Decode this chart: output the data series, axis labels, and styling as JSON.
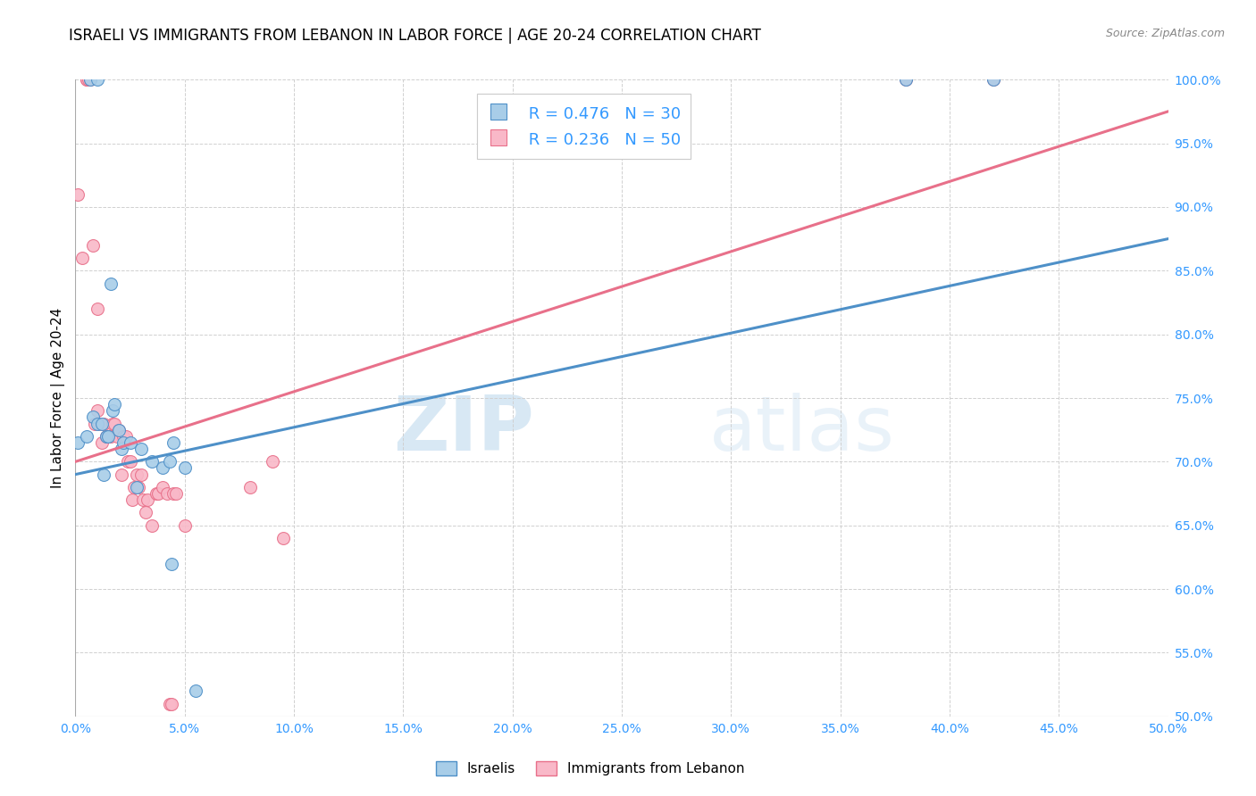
{
  "title": "ISRAELI VS IMMIGRANTS FROM LEBANON IN LABOR FORCE | AGE 20-24 CORRELATION CHART",
  "source": "Source: ZipAtlas.com",
  "ylabel": "In Labor Force | Age 20-24",
  "xlim": [
    0.0,
    0.5
  ],
  "ylim": [
    0.5,
    1.0
  ],
  "xticks": [
    0.0,
    0.05,
    0.1,
    0.15,
    0.2,
    0.25,
    0.3,
    0.35,
    0.4,
    0.45,
    0.5
  ],
  "yticks": [
    0.5,
    0.55,
    0.6,
    0.65,
    0.7,
    0.75,
    0.8,
    0.85,
    0.9,
    0.95,
    1.0
  ],
  "blue_R": 0.476,
  "blue_N": 30,
  "pink_R": 0.236,
  "pink_N": 50,
  "blue_color": "#a8cde8",
  "pink_color": "#f9b8c8",
  "blue_line_color": "#4e90c8",
  "pink_line_color": "#e8708a",
  "legend_label_blue": "Israelis",
  "legend_label_pink": "Immigrants from Lebanon",
  "watermark_zip": "ZIP",
  "watermark_atlas": "atlas",
  "blue_points_x": [
    0.001,
    0.005,
    0.007,
    0.008,
    0.01,
    0.01,
    0.012,
    0.013,
    0.014,
    0.015,
    0.016,
    0.017,
    0.018,
    0.02,
    0.021,
    0.022,
    0.025,
    0.028,
    0.03,
    0.035,
    0.04,
    0.043,
    0.044,
    0.045,
    0.05,
    0.055,
    0.38,
    0.42
  ],
  "blue_points_y": [
    0.715,
    0.72,
    1.0,
    0.735,
    0.73,
    1.0,
    0.73,
    0.69,
    0.72,
    0.72,
    0.84,
    0.74,
    0.745,
    0.725,
    0.71,
    0.715,
    0.715,
    0.68,
    0.71,
    0.7,
    0.695,
    0.7,
    0.62,
    0.715,
    0.695,
    0.52,
    1.0,
    1.0
  ],
  "pink_points_x": [
    0.001,
    0.003,
    0.005,
    0.005,
    0.006,
    0.007,
    0.008,
    0.009,
    0.01,
    0.01,
    0.011,
    0.012,
    0.013,
    0.014,
    0.015,
    0.016,
    0.017,
    0.018,
    0.019,
    0.02,
    0.021,
    0.022,
    0.023,
    0.024,
    0.025,
    0.026,
    0.027,
    0.028,
    0.029,
    0.03,
    0.031,
    0.032,
    0.033,
    0.035,
    0.037,
    0.038,
    0.04,
    0.042,
    0.043,
    0.044,
    0.045,
    0.046,
    0.05,
    0.08,
    0.09,
    0.095,
    0.38,
    0.42
  ],
  "pink_points_y": [
    0.91,
    0.86,
    1.0,
    1.0,
    1.0,
    1.0,
    0.87,
    0.73,
    0.82,
    0.74,
    0.73,
    0.715,
    0.73,
    0.72,
    0.72,
    0.72,
    0.73,
    0.73,
    0.72,
    0.725,
    0.69,
    0.72,
    0.72,
    0.7,
    0.7,
    0.67,
    0.68,
    0.69,
    0.68,
    0.69,
    0.67,
    0.66,
    0.67,
    0.65,
    0.675,
    0.675,
    0.68,
    0.675,
    0.51,
    0.51,
    0.675,
    0.675,
    0.65,
    0.68,
    0.7,
    0.64,
    1.0,
    1.0
  ],
  "blue_trend_x": [
    0.0,
    0.5
  ],
  "blue_trend_y": [
    0.69,
    0.875
  ],
  "pink_trend_x": [
    0.0,
    0.5
  ],
  "pink_trend_y": [
    0.7,
    0.975
  ],
  "background_color": "#ffffff",
  "grid_color": "#d0d0d0",
  "title_fontsize": 12,
  "axis_label_fontsize": 11,
  "tick_fontsize": 10,
  "legend_fontsize": 13
}
